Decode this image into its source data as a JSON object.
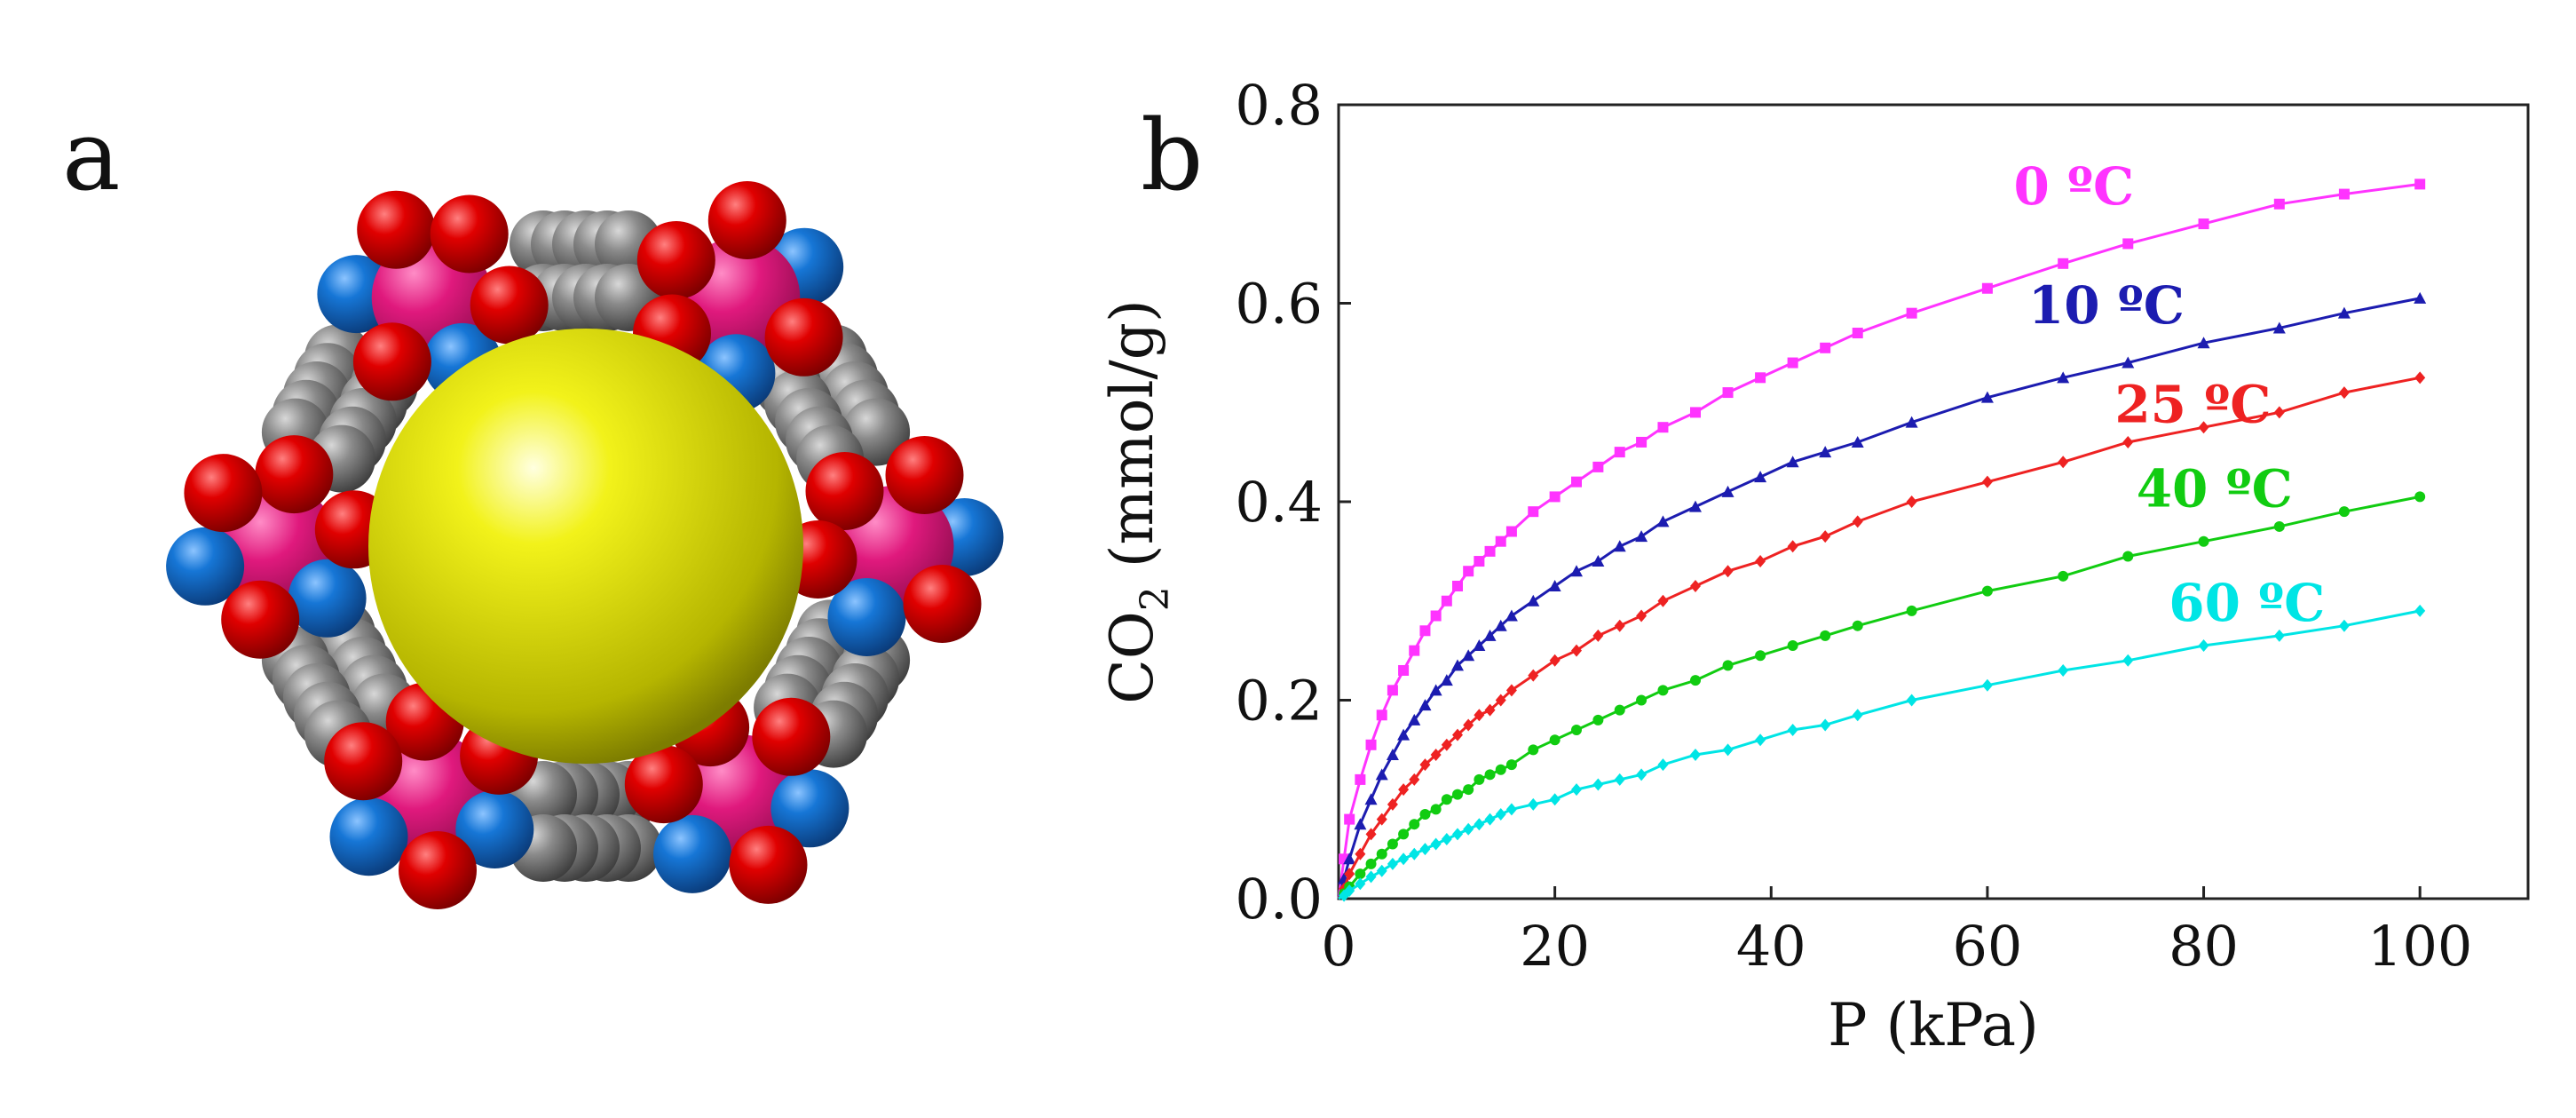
{
  "panels": {
    "a_label": "a",
    "b_label": "b"
  },
  "molecule": {
    "colors": {
      "cage": "#e6e600",
      "metal": "#e0197d",
      "oxygen": "#d40000",
      "nitrogen": "#1266c8",
      "carbon": "#7d7d7d"
    }
  },
  "chart_data": {
    "type": "line",
    "xlabel": "P (kPa)",
    "ylabel_main": "CO",
    "ylabel_sub": "2",
    "ylabel_rest": " (mmol/g)",
    "xlim": [
      0,
      110
    ],
    "ylim": [
      0,
      0.8
    ],
    "xticks": [
      0,
      20,
      40,
      60,
      80,
      100
    ],
    "xtick_labels": [
      "0",
      "20",
      "40",
      "60",
      "80",
      "100"
    ],
    "yticks": [
      0,
      0.2,
      0.4,
      0.6,
      0.8
    ],
    "ytick_labels": [
      "0.0",
      "0.2",
      "0.4",
      "0.6",
      "0.8"
    ],
    "grid": false,
    "series": [
      {
        "name": "0 ºC",
        "color": "#ff33ff",
        "marker": "square",
        "x": [
          0.5,
          1,
          2,
          3,
          4,
          5,
          6,
          7,
          8,
          9,
          10,
          11,
          12,
          13,
          14,
          15,
          16,
          18,
          20,
          22,
          24,
          26,
          28,
          30,
          33,
          36,
          39,
          42,
          45,
          48,
          53,
          60,
          67,
          73,
          80,
          87,
          93,
          100
        ],
        "y": [
          0.04,
          0.08,
          0.12,
          0.155,
          0.185,
          0.21,
          0.23,
          0.25,
          0.27,
          0.285,
          0.3,
          0.315,
          0.33,
          0.34,
          0.35,
          0.36,
          0.37,
          0.39,
          0.405,
          0.42,
          0.435,
          0.45,
          0.46,
          0.475,
          0.49,
          0.51,
          0.525,
          0.54,
          0.555,
          0.57,
          0.59,
          0.615,
          0.64,
          0.66,
          0.68,
          0.7,
          0.71,
          0.72
        ]
      },
      {
        "name": "10 ºC",
        "color": "#1c1cb0",
        "marker": "triangle",
        "x": [
          0.5,
          1,
          2,
          3,
          4,
          5,
          6,
          7,
          8,
          9,
          10,
          11,
          12,
          13,
          14,
          15,
          16,
          18,
          20,
          22,
          24,
          26,
          28,
          30,
          33,
          36,
          39,
          42,
          45,
          48,
          53,
          60,
          67,
          73,
          80,
          87,
          93,
          100
        ],
        "y": [
          0.02,
          0.04,
          0.075,
          0.1,
          0.125,
          0.145,
          0.165,
          0.18,
          0.195,
          0.21,
          0.22,
          0.235,
          0.245,
          0.255,
          0.265,
          0.275,
          0.285,
          0.3,
          0.315,
          0.33,
          0.34,
          0.355,
          0.365,
          0.38,
          0.395,
          0.41,
          0.425,
          0.44,
          0.45,
          0.46,
          0.48,
          0.505,
          0.525,
          0.54,
          0.56,
          0.575,
          0.59,
          0.605
        ]
      },
      {
        "name": "25 ºC",
        "color": "#ee2222",
        "marker": "diamond",
        "x": [
          0.5,
          1,
          2,
          3,
          4,
          5,
          6,
          7,
          8,
          9,
          10,
          11,
          12,
          13,
          14,
          15,
          16,
          18,
          20,
          22,
          24,
          26,
          28,
          30,
          33,
          36,
          39,
          42,
          45,
          48,
          53,
          60,
          67,
          73,
          80,
          87,
          93,
          100
        ],
        "y": [
          0.01,
          0.025,
          0.045,
          0.065,
          0.08,
          0.095,
          0.11,
          0.12,
          0.135,
          0.145,
          0.155,
          0.165,
          0.175,
          0.185,
          0.19,
          0.2,
          0.21,
          0.225,
          0.24,
          0.25,
          0.265,
          0.275,
          0.285,
          0.3,
          0.315,
          0.33,
          0.34,
          0.355,
          0.365,
          0.38,
          0.4,
          0.42,
          0.44,
          0.46,
          0.475,
          0.49,
          0.51,
          0.525
        ]
      },
      {
        "name": "40 ºC",
        "color": "#11cc11",
        "marker": "circle",
        "x": [
          0.5,
          1,
          2,
          3,
          4,
          5,
          6,
          7,
          8,
          9,
          10,
          11,
          12,
          13,
          14,
          15,
          16,
          18,
          20,
          22,
          24,
          26,
          28,
          30,
          33,
          36,
          39,
          42,
          45,
          48,
          53,
          60,
          67,
          73,
          80,
          87,
          93,
          100
        ],
        "y": [
          0.005,
          0.012,
          0.025,
          0.035,
          0.045,
          0.055,
          0.065,
          0.075,
          0.085,
          0.09,
          0.1,
          0.105,
          0.11,
          0.12,
          0.125,
          0.13,
          0.135,
          0.15,
          0.16,
          0.17,
          0.18,
          0.19,
          0.2,
          0.21,
          0.22,
          0.235,
          0.245,
          0.255,
          0.265,
          0.275,
          0.29,
          0.31,
          0.325,
          0.345,
          0.36,
          0.375,
          0.39,
          0.405
        ]
      },
      {
        "name": "60 ºC",
        "color": "#00e5e5",
        "marker": "diamond",
        "x": [
          0.5,
          1,
          2,
          3,
          4,
          5,
          6,
          7,
          8,
          9,
          10,
          11,
          12,
          13,
          14,
          15,
          16,
          18,
          20,
          22,
          24,
          26,
          28,
          30,
          33,
          36,
          39,
          42,
          45,
          48,
          53,
          60,
          67,
          73,
          80,
          87,
          93,
          100
        ],
        "y": [
          0.003,
          0.008,
          0.015,
          0.022,
          0.028,
          0.035,
          0.04,
          0.045,
          0.05,
          0.055,
          0.06,
          0.065,
          0.07,
          0.075,
          0.08,
          0.085,
          0.09,
          0.095,
          0.1,
          0.11,
          0.115,
          0.12,
          0.125,
          0.135,
          0.145,
          0.15,
          0.16,
          0.17,
          0.175,
          0.185,
          0.2,
          0.215,
          0.23,
          0.24,
          0.255,
          0.265,
          0.275,
          0.29
        ]
      }
    ]
  }
}
